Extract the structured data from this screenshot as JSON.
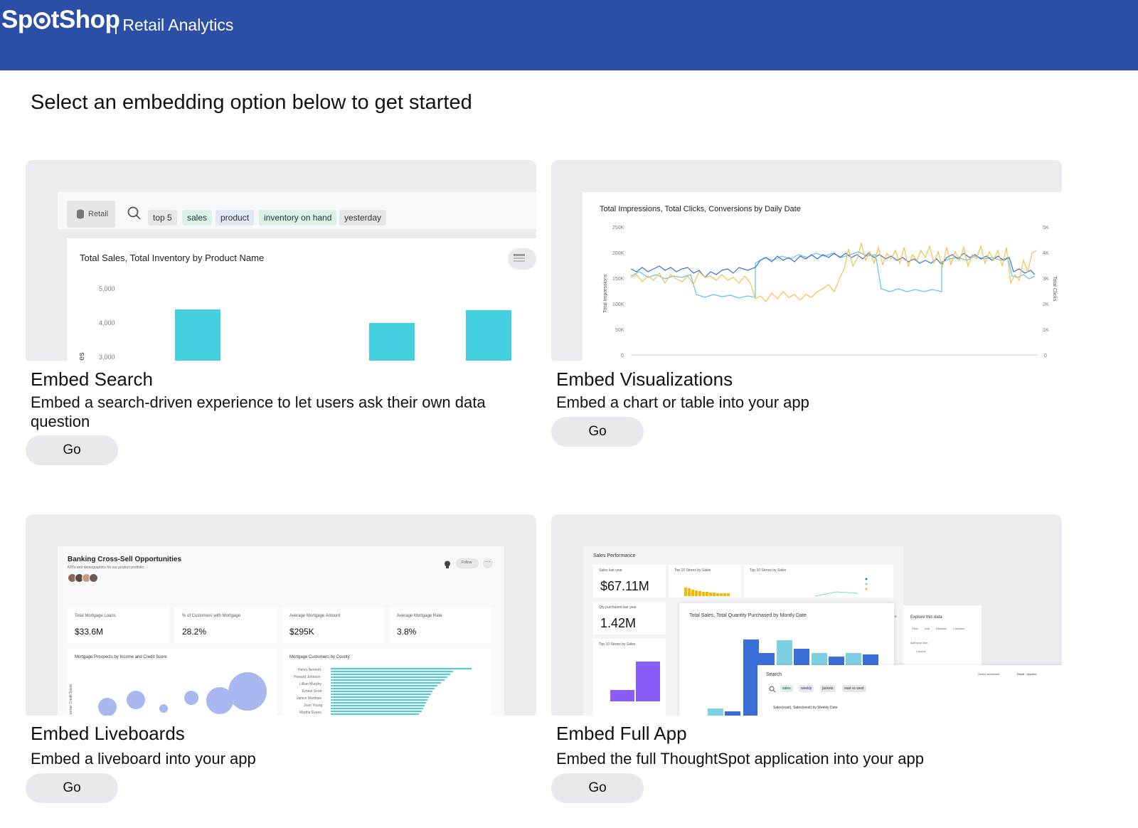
{
  "header": {
    "logo_text_a": "Sp",
    "logo_text_b": "tShop",
    "subtitle": "| Retail Analytics"
  },
  "intro": "Select an embedding option below to get started",
  "colors": {
    "header": "#2b4ea6",
    "bar_cyan": "#45d0e0",
    "line_blue": "#3b6fd8",
    "line_orange": "#f2c14e",
    "bubble": "#a9b8f0",
    "purple": "#8b5cf6"
  },
  "cards": [
    {
      "title": "Embed Search",
      "description": "Embed a search-driven experience to let users ask their own data question",
      "button": "Go",
      "preview": {
        "source_tag": "Retail",
        "tokens": [
          "top 5",
          "sales",
          "product",
          "inventory on hand",
          "yesterday"
        ],
        "chart_title": "Total Sales, Total Inventory by Product Name",
        "y_ticks": [
          "5,000",
          "4,000",
          "3,000"
        ],
        "y_axis_fragment": "es"
      }
    },
    {
      "title": "Embed Visualizations",
      "description": "Embed a chart or table into your app",
      "button": "Go",
      "preview": {
        "chart_title": "Total Impressions, Total Clicks, Conversions by Daily Date",
        "left_ticks": [
          "250K",
          "200K",
          "150K",
          "100K",
          "50K",
          "0"
        ],
        "right_ticks": [
          "5K",
          "4K",
          "3K",
          "2K",
          "1K",
          "0"
        ],
        "left_label": "Total Impressions",
        "right_label": "Total Clicks"
      }
    },
    {
      "title": "Embed Liveboards",
      "description": "Embed a liveboard into your app",
      "button": "Go",
      "preview": {
        "board_title": "Banking Cross-Sell Opportunities",
        "board_subtitle": "KPI's and demographics for our product portfolio.",
        "follow": "Follow",
        "kpis": [
          {
            "label": "Total Mortgage Loans",
            "value": "$33.6M"
          },
          {
            "label": "% of Customers with Mortgage",
            "value": "28.2%"
          },
          {
            "label": "Average Mortgage Amount",
            "value": "$295K"
          },
          {
            "label": "Average Mortgage Rate",
            "value": "3.8%"
          }
        ],
        "chart_a_title": "Mortgage Prospects by Income and Credit Score",
        "chart_a_ylabel": "ormer Credit Score",
        "chart_b_title": "Mortgage Customers by County",
        "names": [
          "Henry Bennett",
          "Howard Johnson",
          "Lillian Murphy",
          "Ernest Scott",
          "Janice Martinez",
          "Joan Young",
          "Martha Evans"
        ]
      }
    },
    {
      "title": "Embed Full App",
      "description": "Embed the full ThoughtSpot application into your app",
      "button": "Go",
      "preview": {
        "perf_title": "Sales Performance",
        "kpi1_label": "Sales last year",
        "kpi1_value": "$67.11M",
        "kpi2_label": "Qty purchased last year",
        "kpi2_value": "1.42M",
        "top10": "Top 10 Stores by Sales",
        "mid_chart_title": "Total Sales, Total Quantity Purchased by Montly Date",
        "explore_title": "Explore this data",
        "explore_tabs": [
          "Filter",
          "Add",
          "Replace",
          "Compare"
        ],
        "add_own": "Add your own",
        "column": "Column",
        "search_label": "Search",
        "worksheet_label": "Select worksheet",
        "worksheet_value": "Retail - Apparel",
        "search_tokens": [
          "sales",
          "weekly",
          "jackets",
          "east vs west"
        ],
        "search_result": "Sales(east), Sales(west) by Weekly Date"
      }
    }
  ]
}
